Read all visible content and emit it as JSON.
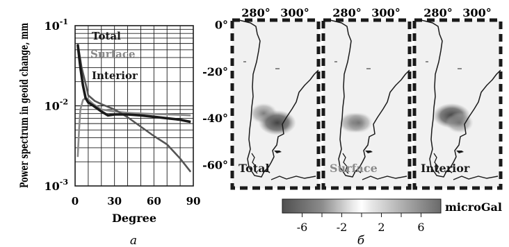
{
  "chart_data": [
    {
      "type": "line",
      "panel_label": "а",
      "title": "",
      "xlabel": "Degree",
      "ylabel": "Power spectrum in geoid change, mm",
      "xlim": [
        0,
        90
      ],
      "ylim": [
        0.001,
        0.1
      ],
      "yscale": "log",
      "grid": true,
      "x_ticks": [
        "0",
        "30",
        "60",
        "90"
      ],
      "y_ticks": [
        {
          "base": "10",
          "exp": "-1",
          "value": 0.1
        },
        {
          "base": "10",
          "exp": "-2",
          "value": 0.01
        },
        {
          "base": "10",
          "exp": "-3",
          "value": 0.001
        }
      ],
      "legend_position": "top-center",
      "series": [
        {
          "name": "Total",
          "color": "#1a1a1a",
          "x": [
            2,
            4,
            6,
            8,
            10,
            14,
            20,
            25,
            30,
            40,
            50,
            60,
            70,
            80,
            88
          ],
          "y": [
            0.058,
            0.03,
            0.018,
            0.0125,
            0.011,
            0.01,
            0.0085,
            0.0076,
            0.0078,
            0.0078,
            0.0076,
            0.0073,
            0.007,
            0.0067,
            0.0063
          ]
        },
        {
          "name": "Surface",
          "color": "#8a8a8a",
          "x": [
            2,
            3,
            4,
            6,
            8,
            10,
            14,
            20,
            30,
            40,
            60,
            80,
            88
          ],
          "y": [
            0.0023,
            0.005,
            0.009,
            0.0118,
            0.0125,
            0.012,
            0.0105,
            0.009,
            0.0085,
            0.0082,
            0.0079,
            0.0077,
            0.0076
          ]
        },
        {
          "name": "Interior",
          "color": "#555555",
          "x": [
            2,
            5,
            8,
            10,
            15,
            20,
            30,
            40,
            50,
            60,
            70,
            80,
            88
          ],
          "y": [
            0.06,
            0.03,
            0.019,
            0.0135,
            0.0115,
            0.0105,
            0.009,
            0.0072,
            0.0055,
            0.0042,
            0.0033,
            0.0022,
            0.0015
          ]
        }
      ]
    },
    {
      "type": "heatmap",
      "panel_label": "б",
      "title": "",
      "x_ticks": [
        "280°",
        "300°"
      ],
      "y_ticks": [
        "0°",
        "-20°",
        "-40°",
        "-60°"
      ],
      "ylim": [
        -70,
        2
      ],
      "panels": [
        "Total",
        "Surface",
        "Interior"
      ],
      "colorbar": {
        "unit": "microGal",
        "range": [
          -8,
          8
        ],
        "ticks": [
          "-6",
          "-2",
          "2",
          "6"
        ]
      },
      "anomalies": {
        "Total": [
          {
            "lon": 284,
            "lat": -38,
            "value": -3.5
          },
          {
            "lon": 291,
            "lat": -42,
            "value": -5.5
          }
        ],
        "Surface": [
          {
            "lon": 283,
            "lat": -42,
            "value": -4
          },
          {
            "lon": 286,
            "lat": -42,
            "value": -2.5
          }
        ],
        "Interior": [
          {
            "lon": 287,
            "lat": -39,
            "value": -5
          },
          {
            "lon": 291,
            "lat": -42,
            "value": -4
          }
        ]
      }
    }
  ]
}
